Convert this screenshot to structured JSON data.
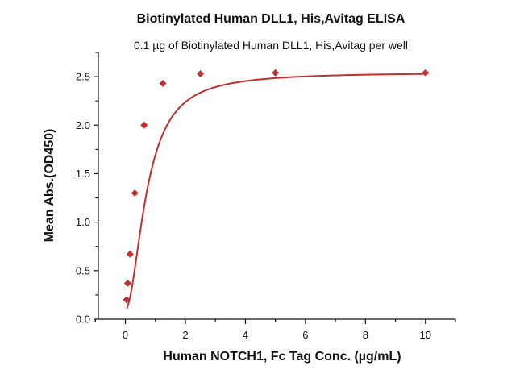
{
  "chart_data": {
    "type": "scatter",
    "title": "Biotinylated Human DLL1, His,Avitag ELISA",
    "subtitle": "0.1 µg of Biotinylated Human DLL1, His,Avitag per well",
    "xlabel": "Human NOTCH1, Fc Tag Conc. (µg/mL)",
    "ylabel": "Mean Abs.(OD450)",
    "xlim": [
      -0.9,
      11
    ],
    "ylim": [
      0,
      2.75
    ],
    "x_ticks": [
      0,
      2,
      4,
      6,
      8,
      10
    ],
    "y_ticks": [
      0.0,
      0.5,
      1.0,
      1.5,
      2.0,
      2.5
    ],
    "x_tick_labels": [
      "0",
      "2",
      "4",
      "6",
      "8",
      "10"
    ],
    "y_tick_labels": [
      "0.0",
      "0.5",
      "1.0",
      "1.5",
      "2.0",
      "2.5"
    ],
    "grid": false,
    "series": [
      {
        "x": [
          0.039,
          0.078,
          0.156,
          0.313,
          0.625,
          1.25,
          2.5,
          5,
          10
        ],
        "y": [
          0.2,
          0.37,
          0.67,
          1.3,
          2.0,
          2.43,
          2.53,
          2.54,
          2.54
        ],
        "color": "#c0302e",
        "marker": "diamond",
        "fit": "four-parameter logistic curve"
      }
    ]
  }
}
